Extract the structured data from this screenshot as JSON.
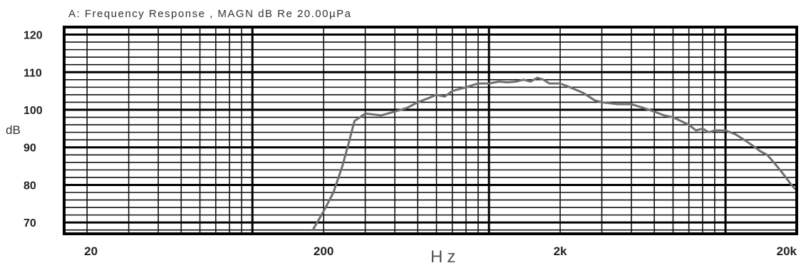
{
  "chart_data": {
    "type": "line",
    "title": "A:   Frequency Response , MAGN dB  Re 20.00µPa",
    "xlabel": "Hz",
    "ylabel": "dB",
    "x_scale": "log",
    "xlim": [
      16,
      20000
    ],
    "ylim": [
      67,
      122
    ],
    "grid": true,
    "x_ticks": [
      {
        "value": 20,
        "label": "20"
      },
      {
        "value": 200,
        "label": "200"
      },
      {
        "value": 2000,
        "label": "2k"
      },
      {
        "value": 20000,
        "label": "20k"
      }
    ],
    "y_ticks": [
      {
        "value": 120,
        "label": "120"
      },
      {
        "value": 110,
        "label": "110"
      },
      {
        "value": 100,
        "label": "100"
      },
      {
        "value": 90,
        "label": "90"
      },
      {
        "value": 80,
        "label": "80"
      },
      {
        "value": 70,
        "label": "70"
      }
    ],
    "series": [
      {
        "color": "#707070",
        "x": [
          180,
          200,
          220,
          240,
          255,
          270,
          300,
          350,
          400,
          450,
          500,
          550,
          600,
          650,
          700,
          800,
          900,
          1000,
          1100,
          1200,
          1300,
          1400,
          1500,
          1600,
          1700,
          1800,
          1900,
          2000,
          2200,
          2500,
          2800,
          3000,
          3500,
          4000,
          4500,
          5000,
          5500,
          6000,
          7000,
          7500,
          8000,
          8500,
          9000,
          10000,
          11000,
          12000,
          13000,
          14000,
          15000,
          16000,
          17000,
          18000,
          19000,
          20000
        ],
        "y": [
          68,
          73,
          78,
          85,
          91,
          97,
          99,
          98.5,
          99.5,
          100.5,
          102,
          103,
          104,
          103.5,
          105,
          106,
          107,
          107,
          107.5,
          107.3,
          107.5,
          108,
          107.5,
          108.5,
          108,
          107,
          107,
          107,
          106,
          104.5,
          102.5,
          102,
          101.5,
          101.5,
          100.5,
          99.5,
          98.5,
          98,
          96,
          94.5,
          95,
          94,
          94.5,
          94.5,
          93.5,
          92,
          90.5,
          89,
          88,
          86,
          84,
          82,
          80,
          78.5
        ]
      }
    ]
  }
}
